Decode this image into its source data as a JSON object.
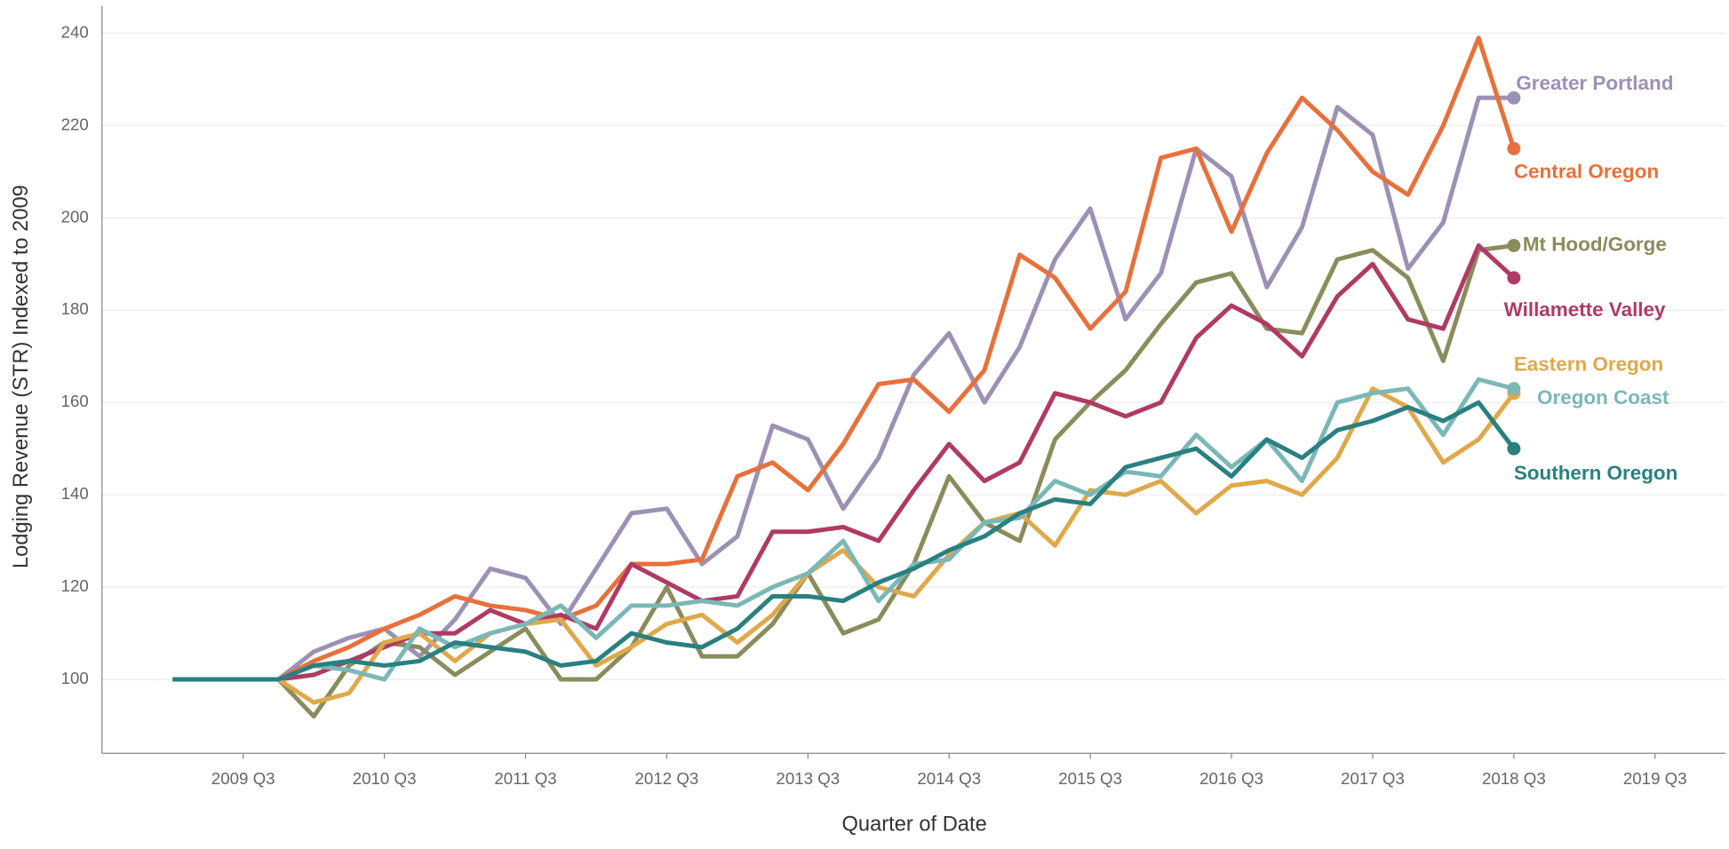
{
  "chart_data": {
    "type": "line",
    "x_label": "Quarter of Date",
    "y_label": "Lodging Revenue (STR) Indexed to 2009",
    "x": [
      "2009 Q1",
      "2009 Q2",
      "2009 Q3",
      "2009 Q4",
      "2010 Q1",
      "2010 Q2",
      "2010 Q3",
      "2010 Q4",
      "2011 Q1",
      "2011 Q2",
      "2011 Q3",
      "2011 Q4",
      "2012 Q1",
      "2012 Q2",
      "2012 Q3",
      "2012 Q4",
      "2013 Q1",
      "2013 Q2",
      "2013 Q3",
      "2013 Q4",
      "2014 Q1",
      "2014 Q2",
      "2014 Q3",
      "2014 Q4",
      "2015 Q1",
      "2015 Q2",
      "2015 Q3",
      "2015 Q4",
      "2016 Q1",
      "2016 Q2",
      "2016 Q3",
      "2016 Q4",
      "2017 Q1",
      "2017 Q2",
      "2017 Q3",
      "2017 Q4",
      "2018 Q1",
      "2018 Q2",
      "2018 Q3"
    ],
    "xlim": [
      "2008 Q3",
      "2020 Q1"
    ],
    "xticks": [
      "2009 Q3",
      "2010 Q3",
      "2011 Q3",
      "2012 Q3",
      "2013 Q3",
      "2014 Q3",
      "2015 Q3",
      "2016 Q3",
      "2017 Q3",
      "2018 Q3",
      "2019 Q3"
    ],
    "ylim": [
      84,
      246
    ],
    "yticks": [
      100,
      120,
      140,
      160,
      180,
      200,
      220,
      240
    ],
    "grid": true,
    "series": [
      {
        "name": "Greater Portland",
        "color": "#9d90b5",
        "values": [
          100,
          100,
          100,
          100,
          106,
          109,
          111,
          105,
          113,
          124,
          122,
          112,
          124,
          136,
          137,
          125,
          131,
          155,
          152,
          137,
          148,
          166,
          175,
          160,
          172,
          191,
          202,
          178,
          188,
          215,
          209,
          185,
          198,
          224,
          218,
          189,
          199,
          226,
          226
        ]
      },
      {
        "name": "Central Oregon",
        "color": "#e8703a",
        "values": [
          100,
          100,
          100,
          100,
          104,
          107,
          111,
          114,
          118,
          116,
          115,
          113,
          116,
          125,
          125,
          126,
          144,
          147,
          141,
          151,
          164,
          165,
          158,
          167,
          192,
          187,
          176,
          184,
          213,
          215,
          197,
          214,
          226,
          219,
          210,
          205,
          220,
          239,
          215
        ]
      },
      {
        "name": "Mt Hood/Gorge",
        "color": "#8b8c5c",
        "values": [
          100,
          100,
          100,
          100,
          92,
          103,
          108,
          107,
          101,
          106,
          111,
          100,
          100,
          107,
          120,
          105,
          105,
          112,
          123,
          110,
          113,
          125,
          144,
          134,
          130,
          152,
          160,
          167,
          177,
          186,
          188,
          176,
          175,
          191,
          193,
          187,
          169,
          193,
          194
        ]
      },
      {
        "name": "Willamette Valley",
        "color": "#b03a64",
        "values": [
          100,
          100,
          100,
          100,
          101,
          104,
          107,
          110,
          110,
          115,
          112,
          114,
          111,
          125,
          121,
          117,
          118,
          132,
          132,
          133,
          130,
          141,
          151,
          143,
          147,
          162,
          160,
          157,
          160,
          174,
          181,
          177,
          170,
          183,
          190,
          178,
          176,
          194,
          187
        ]
      },
      {
        "name": "Eastern Oregon",
        "color": "#e0a84a",
        "values": [
          100,
          100,
          100,
          100,
          95,
          97,
          108,
          110,
          104,
          110,
          112,
          113,
          103,
          107,
          112,
          114,
          108,
          114,
          123,
          128,
          120,
          118,
          127,
          134,
          136,
          129,
          141,
          140,
          143,
          136,
          142,
          143,
          140,
          148,
          163,
          159,
          147,
          152,
          162
        ]
      },
      {
        "name": "Oregon Coast",
        "color": "#7ab8b6",
        "values": [
          100,
          100,
          100,
          100,
          103,
          102,
          100,
          111,
          107,
          110,
          112,
          116,
          109,
          116,
          116,
          117,
          116,
          120,
          123,
          130,
          117,
          125,
          126,
          134,
          135,
          143,
          140,
          145,
          144,
          153,
          146,
          152,
          143,
          160,
          162,
          163,
          153,
          165,
          163
        ]
      },
      {
        "name": "Southern Oregon",
        "color": "#2a8080",
        "values": [
          100,
          100,
          100,
          100,
          103,
          104,
          103,
          104,
          108,
          107,
          106,
          103,
          104,
          110,
          108,
          107,
          111,
          118,
          118,
          117,
          121,
          124,
          128,
          131,
          136,
          139,
          138,
          146,
          148,
          150,
          144,
          152,
          148,
          154,
          156,
          159,
          156,
          160,
          150
        ]
      }
    ]
  }
}
